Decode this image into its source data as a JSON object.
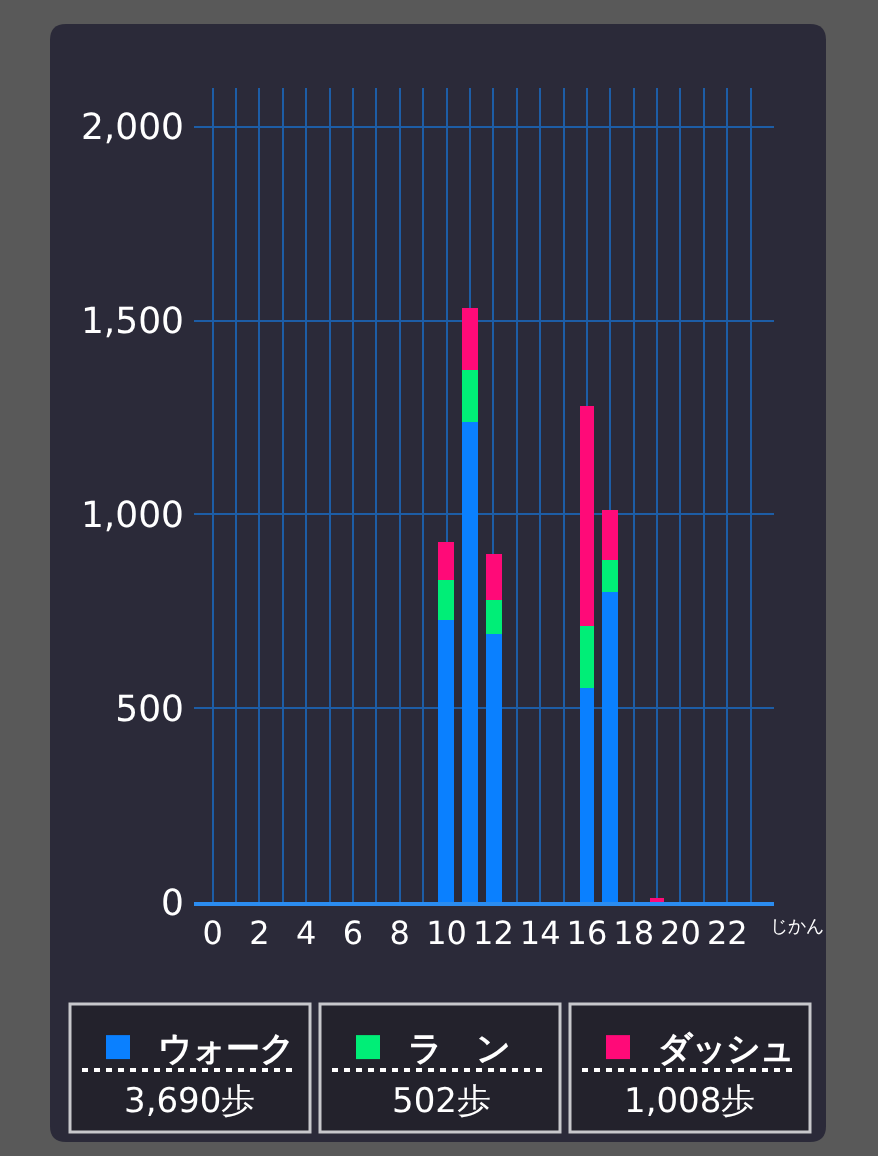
{
  "chart_data": {
    "type": "bar",
    "stacked": true,
    "xlabel": "じかん",
    "series": [
      {
        "name": "ウォーク",
        "color": "#0a80ff",
        "x": [
          10,
          11,
          12,
          16,
          17
        ],
        "values": [
          730,
          1240,
          690,
          550,
          800
        ]
      },
      {
        "name": "ラ　ン",
        "color": "#00ee77",
        "x": [
          10,
          11,
          12,
          16,
          17
        ],
        "values": [
          100,
          130,
          90,
          160,
          80
        ]
      },
      {
        "name": "ダッシュ",
        "color": "#ff0a78",
        "x": [
          10,
          11,
          12,
          16,
          17,
          19
        ],
        "values": [
          100,
          160,
          120,
          570,
          130,
          10
        ]
      }
    ],
    "xlim": [
      -0.8,
      24
    ],
    "xticks": [
      0,
      {
        "value": 1,
        "label": null
      },
      2,
      {
        "value": 3,
        "label": null
      },
      4,
      {
        "value": 5,
        "label": null
      },
      6,
      {
        "value": 7,
        "label": null
      },
      8,
      {
        "value": 9,
        "label": null
      },
      10,
      {
        "value": 11,
        "label": null
      },
      12,
      {
        "value": 13,
        "label": null
      },
      14,
      {
        "value": 15,
        "label": null
      },
      16,
      {
        "value": 17,
        "label": null
      },
      18,
      {
        "value": 19,
        "label": null
      },
      20,
      {
        "value": 21,
        "label": null
      },
      22,
      {
        "value": 23,
        "label": null
      }
    ],
    "ylim": [
      0,
      2100
    ],
    "yticks": [
      0,
      500,
      {
        "value": 1000,
        "label": "1,000"
      },
      {
        "value": 1500,
        "label": "1,500"
      },
      {
        "value": 2000,
        "label": "2,000"
      }
    ],
    "grid": true,
    "legend": "bottom",
    "annotations": [
      "3,690歩",
      "502歩",
      "1,008歩"
    ]
  }
}
